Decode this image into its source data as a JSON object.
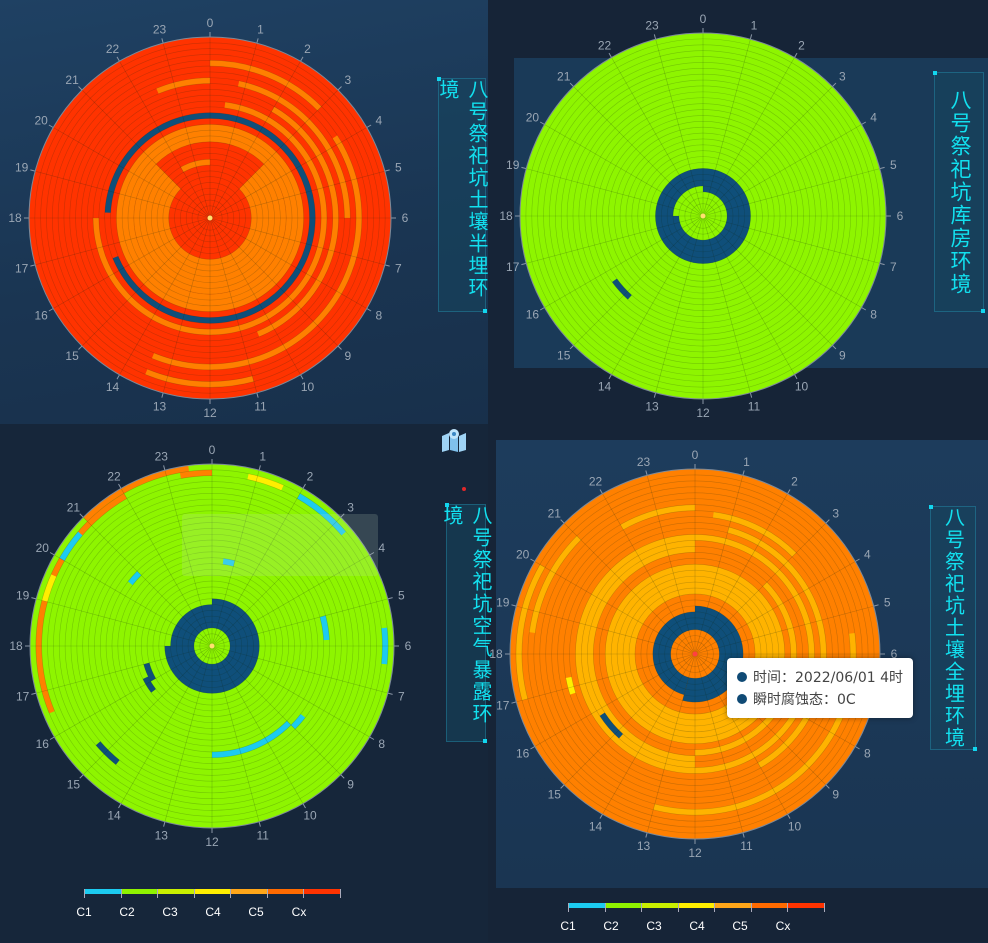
{
  "panels": [
    {
      "title": "八号祭祀坑土壤半埋环境"
    },
    {
      "title": "八号祭祀坑库房环境"
    },
    {
      "title": "八号祭祀坑空气暴露环境"
    },
    {
      "title": "八号祭祀坑土壤全埋环境"
    }
  ],
  "tooltip": {
    "time_label": "时间：2022/06/01 4时",
    "value_label": "瞬时腐蚀态：0C"
  },
  "legend": {
    "labels": [
      "C1",
      "C2",
      "C3",
      "C4",
      "C5",
      "Cx"
    ],
    "colors": [
      "#1ccbf0",
      "#8ff200",
      "#c9ef00",
      "#ffee00",
      "#ffa619",
      "#ff6a00",
      "#ff3300"
    ]
  },
  "chart_data": [
    {
      "type": "heatmap",
      "coordinate": "polar",
      "angle_labels": [
        "0",
        "1",
        "2",
        "3",
        "4",
        "5",
        "6",
        "7",
        "8",
        "9",
        "10",
        "11",
        "12",
        "13",
        "14",
        "15",
        "16",
        "17",
        "18",
        "19",
        "20",
        "21",
        "22",
        "23"
      ],
      "radial_rings": 30,
      "colors": {
        "0C": "#0f4f7a",
        "C2": "#8ef500",
        "C3": "#ffb300",
        "C4": "#ff8000",
        "C5": "#ff3300"
      },
      "base": "C5",
      "highlights": [
        {
          "c": "C4",
          "r": [
            6,
            12
          ],
          "h": [
            3.0,
            21.0
          ]
        },
        {
          "c": "C4",
          "r": [
            12,
            15
          ],
          "h": [
            0.0,
            24.0
          ]
        },
        {
          "c": "0C",
          "r": [
            16,
            17
          ],
          "h": [
            0.0,
            16.5
          ]
        },
        {
          "c": "0C",
          "r": [
            16,
            17
          ],
          "h": [
            18.2,
            24.0
          ]
        },
        {
          "c": "C4",
          "r": [
            18,
            19
          ],
          "h": [
            0.5,
            18.0
          ]
        },
        {
          "c": "C4",
          "r": [
            20,
            21
          ],
          "h": [
            2.0,
            10.5
          ]
        },
        {
          "c": "C4",
          "r": [
            22,
            23
          ],
          "h": [
            0.8,
            6.0
          ]
        },
        {
          "c": "C4",
          "r": [
            22,
            23
          ],
          "h": [
            22.5,
            24.0
          ]
        },
        {
          "c": "C4",
          "r": [
            24,
            25
          ],
          "h": [
            3.8,
            13.5
          ]
        },
        {
          "c": "C4",
          "r": [
            25,
            26
          ],
          "h": [
            0.0,
            3.0
          ]
        },
        {
          "c": "C4",
          "r": [
            8,
            9
          ],
          "h": [
            22.0,
            24.0
          ]
        },
        {
          "c": "C4",
          "r": [
            27,
            28
          ],
          "h": [
            11.0,
            13.5
          ]
        }
      ]
    },
    {
      "type": "heatmap",
      "coordinate": "polar",
      "angle_labels": [
        "0",
        "1",
        "2",
        "3",
        "4",
        "5",
        "6",
        "7",
        "8",
        "9",
        "10",
        "11",
        "12",
        "13",
        "14",
        "15",
        "16",
        "17",
        "18",
        "19",
        "20",
        "21",
        "22",
        "23"
      ],
      "radial_rings": 30,
      "colors": {
        "0C": "#0f4f7a",
        "C2": "#8ef500",
        "C3": "#ffb300",
        "C4": "#ff8000",
        "C5": "#ff3300"
      },
      "base": "C2",
      "highlights": [
        {
          "c": "0C",
          "r": [
            3,
            7
          ],
          "h": [
            0.0,
            18.0
          ]
        },
        {
          "c": "0C",
          "r": [
            4,
            7
          ],
          "h": [
            18.0,
            24.0
          ]
        },
        {
          "c": "0C",
          "r": [
            17,
            18
          ],
          "h": [
            14.8,
            15.6
          ]
        }
      ]
    },
    {
      "type": "heatmap",
      "coordinate": "polar",
      "angle_labels": [
        "0",
        "1",
        "2",
        "3",
        "4",
        "5",
        "6",
        "7",
        "8",
        "9",
        "10",
        "11",
        "12",
        "13",
        "14",
        "15",
        "16",
        "17",
        "18",
        "19",
        "20",
        "21",
        "22",
        "23"
      ],
      "radial_rings": 30,
      "colors": {
        "0C": "#0f4f7a",
        "C1": "#1ccbf0",
        "C2": "#8ef500",
        "C3": "#ffee00",
        "C4": "#ff8000",
        "C5": "#ff3300"
      },
      "base": "C2",
      "highlights": [
        {
          "c": "0C",
          "r": [
            2,
            7
          ],
          "h": [
            0.0,
            18.0
          ]
        },
        {
          "c": "0C",
          "r": [
            2,
            6
          ],
          "h": [
            18.0,
            24.0
          ]
        },
        {
          "c": "C4",
          "r": [
            28,
            29
          ],
          "h": [
            16.5,
            22.0
          ]
        },
        {
          "c": "C4",
          "r": [
            28,
            29
          ],
          "h": [
            23.3,
            24.0
          ]
        },
        {
          "c": "C3",
          "r": [
            28,
            29
          ],
          "h": [
            0.8,
            1.6
          ]
        },
        {
          "c": "C3",
          "r": [
            28,
            29
          ],
          "h": [
            19.0,
            19.6
          ]
        },
        {
          "c": "C1",
          "r": [
            28,
            29
          ],
          "h": [
            2.0,
            3.3
          ]
        },
        {
          "c": "C1",
          "r": [
            28,
            29
          ],
          "h": [
            20.0,
            20.7
          ]
        },
        {
          "c": "C1",
          "r": [
            28,
            29
          ],
          "h": [
            5.6,
            6.4
          ]
        },
        {
          "c": "C4",
          "r": [
            29,
            30
          ],
          "h": [
            21.0,
            23.5
          ]
        },
        {
          "c": "C1",
          "r": [
            13,
            14
          ],
          "h": [
            0.5,
            1.0
          ]
        },
        {
          "c": "C1",
          "r": [
            16,
            17
          ],
          "h": [
            20.5,
            21.0
          ]
        },
        {
          "c": "C1",
          "r": [
            17,
            18
          ],
          "h": [
            9.0,
            12.0
          ]
        },
        {
          "c": "C1",
          "r": [
            18,
            19
          ],
          "h": [
            5.0,
            5.8
          ]
        },
        {
          "c": "C1",
          "r": [
            18,
            19
          ],
          "h": [
            8.5,
            9.0
          ]
        },
        {
          "c": "0C",
          "r": [
            10,
            11
          ],
          "h": [
            16.0,
            17.0
          ]
        },
        {
          "c": "0C",
          "r": [
            11,
            12
          ],
          "h": [
            15.5,
            16.3
          ]
        },
        {
          "c": "0C",
          "r": [
            24,
            25
          ],
          "h": [
            14.6,
            15.3
          ]
        }
      ]
    },
    {
      "type": "heatmap",
      "coordinate": "polar",
      "angle_labels": [
        "0",
        "1",
        "2",
        "3",
        "4",
        "5",
        "6",
        "7",
        "8",
        "9",
        "10",
        "11",
        "12",
        "13",
        "14",
        "15",
        "16",
        "17",
        "18",
        "19",
        "20",
        "21",
        "22",
        "23"
      ],
      "radial_rings": 30,
      "colors": {
        "0C": "#0f4f7a",
        "C3": "#ffee00",
        "C4": "#ffb300",
        "C5": "#ff8000"
      },
      "base": "C5",
      "highlights": [
        {
          "c": "0C",
          "r": [
            3,
            7
          ],
          "h": [
            0.0,
            13.0
          ]
        },
        {
          "c": "0C",
          "r": [
            3,
            6
          ],
          "h": [
            13.0,
            24.0
          ]
        },
        {
          "c": "C4",
          "r": [
            9,
            14
          ],
          "h": [
            0.0,
            24.0
          ]
        },
        {
          "c": "C4",
          "r": [
            15,
            16
          ],
          "h": [
            3.0,
            12.0
          ]
        },
        {
          "c": "C4",
          "r": [
            16,
            18
          ],
          "h": [
            12.0,
            24.0
          ]
        },
        {
          "c": "C4",
          "r": [
            18,
            19
          ],
          "h": [
            0.0,
            24.0
          ]
        },
        {
          "c": "C4",
          "r": [
            20,
            21
          ],
          "h": [
            1.0,
            10.0
          ]
        },
        {
          "c": "C4",
          "r": [
            22,
            23
          ],
          "h": [
            0.5,
            3.0
          ]
        },
        {
          "c": "C4",
          "r": [
            23,
            24
          ],
          "h": [
            22.0,
            24.0
          ]
        },
        {
          "c": "C4",
          "r": [
            25,
            26
          ],
          "h": [
            5.5,
            13.0
          ]
        },
        {
          "c": "C4",
          "r": [
            26,
            27
          ],
          "h": [
            18.5,
            21.0
          ]
        },
        {
          "c": "C3",
          "r": [
            20,
            21
          ],
          "h": [
            16.8,
            17.3
          ]
        },
        {
          "c": "0C",
          "r": [
            17,
            18
          ],
          "h": [
            14.8,
            15.8
          ]
        },
        {
          "c": "C4",
          "r": [
            28,
            29
          ],
          "h": [
            17.0,
            20.0
          ]
        }
      ]
    }
  ]
}
